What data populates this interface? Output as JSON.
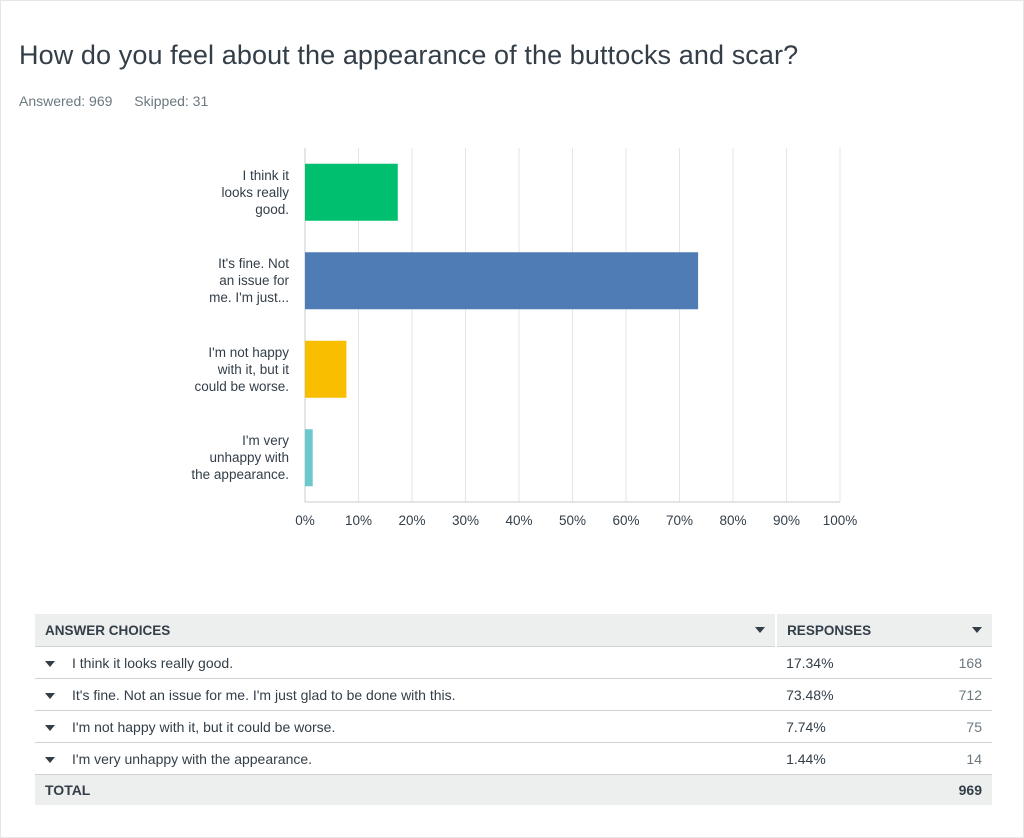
{
  "title": "How do you feel about the appearance of the buttocks and scar?",
  "answered_label": "Answered: 969",
  "skipped_label": "Skipped: 31",
  "chart_data": {
    "type": "bar",
    "orientation": "horizontal",
    "categories": [
      "I think it looks really good.",
      "It's fine. Not an issue for me. I'm just...",
      "I'm not happy with it, but it could be worse.",
      "I'm very unhappy with the appearance."
    ],
    "category_lines": [
      [
        "I think it",
        "looks really",
        "good."
      ],
      [
        "It's fine. Not",
        "an issue for",
        "me. I'm just..."
      ],
      [
        "I'm not happy",
        "with it, but it",
        "could be worse."
      ],
      [
        "I'm very",
        "unhappy with",
        "the appearance."
      ]
    ],
    "values": [
      17.34,
      73.48,
      7.74,
      1.44
    ],
    "colors": [
      "#00bf6f",
      "#507cb6",
      "#f9be00",
      "#6bc8cd"
    ],
    "xlim": [
      0,
      100
    ],
    "xticks": [
      "0%",
      "10%",
      "20%",
      "30%",
      "40%",
      "50%",
      "60%",
      "70%",
      "80%",
      "90%",
      "100%"
    ],
    "grid": true
  },
  "table": {
    "col_answer": "ANSWER CHOICES",
    "col_responses": "RESPONSES",
    "rows": [
      {
        "label": "I think it looks really good.",
        "percent": "17.34%",
        "count": "168"
      },
      {
        "label": "It's fine. Not an issue for me. I'm just glad to be done with this.",
        "percent": "73.48%",
        "count": "712"
      },
      {
        "label": "I'm not happy with it, but it could be worse.",
        "percent": "7.74%",
        "count": "75"
      },
      {
        "label": "I'm very unhappy with the appearance.",
        "percent": "1.44%",
        "count": "14"
      }
    ],
    "total_label": "TOTAL",
    "total_count": "969"
  }
}
